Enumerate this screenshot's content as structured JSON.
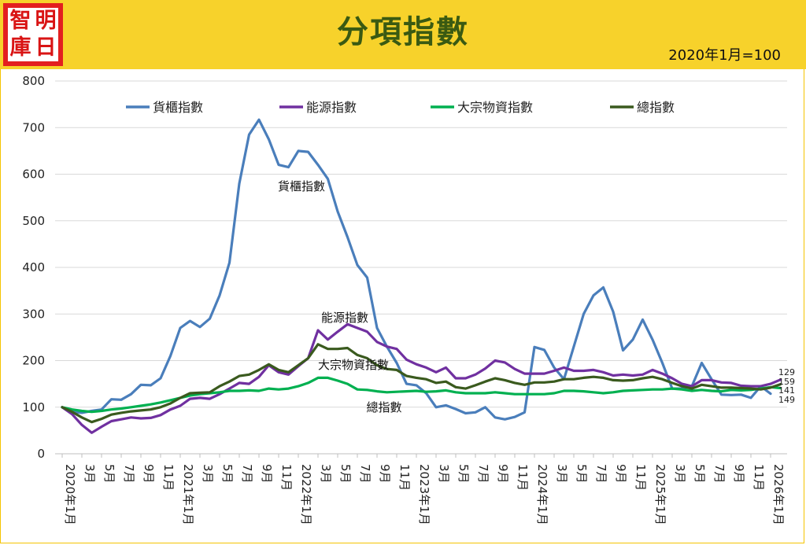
{
  "header": {
    "title": "分項指數",
    "subtitle": "2020年1月=100",
    "logo_chars": [
      "智",
      "明",
      "庫",
      "日"
    ]
  },
  "chart_data": {
    "type": "line",
    "title": "分項指數",
    "subtitle": "2020年1月=100",
    "ylim": [
      0,
      800
    ],
    "yticks": [
      0,
      100,
      200,
      300,
      400,
      500,
      600,
      700,
      800
    ],
    "grid": "horizontal",
    "legend_position": "top",
    "x_start": "2020-01",
    "x_labels": [
      "2020年1月",
      "3月",
      "5月",
      "7月",
      "9月",
      "11月",
      "2021年1月",
      "3月",
      "5月",
      "7月",
      "9月",
      "11月",
      "2022年1月",
      "3月",
      "5月",
      "7月",
      "9月",
      "11月",
      "2023年1月",
      "3月",
      "5月",
      "7月",
      "9月",
      "11月",
      "2024年1月",
      "3月",
      "5月",
      "7月",
      "9月",
      "11月",
      "2025年1月",
      "3月",
      "5月",
      "7月",
      "9月",
      "11月",
      "2026年1月"
    ],
    "series": [
      {
        "name": "貨櫃指數",
        "color": "#4a7ebb",
        "values": [
          100,
          90,
          88,
          92,
          95,
          117,
          116,
          128,
          148,
          147,
          162,
          210,
          270,
          285,
          272,
          290,
          340,
          410,
          580,
          685,
          717,
          675,
          620,
          615,
          650,
          648,
          620,
          590,
          520,
          465,
          405,
          378,
          270,
          230,
          195,
          150,
          147,
          130,
          100,
          104,
          96,
          87,
          89,
          100,
          78,
          74,
          79,
          89,
          229,
          223,
          185,
          160,
          230,
          300,
          340,
          357,
          305,
          222,
          245,
          288,
          245,
          195,
          140,
          140,
          145,
          195,
          160,
          127,
          126,
          127,
          120,
          145,
          129
        ],
        "annotation": "貨櫃指數",
        "end_label": "129"
      },
      {
        "name": "能源指數",
        "color": "#7030a0",
        "values": [
          100,
          85,
          62,
          45,
          58,
          70,
          74,
          78,
          76,
          77,
          83,
          95,
          103,
          118,
          120,
          118,
          128,
          140,
          152,
          150,
          165,
          190,
          175,
          170,
          188,
          205,
          265,
          245,
          262,
          278,
          270,
          262,
          240,
          230,
          225,
          202,
          192,
          185,
          175,
          185,
          162,
          162,
          170,
          183,
          200,
          196,
          182,
          172,
          172,
          172,
          178,
          185,
          178,
          178,
          180,
          175,
          168,
          170,
          168,
          170,
          180,
          172,
          162,
          150,
          145,
          158,
          158,
          153,
          152,
          146,
          145,
          145,
          150,
          159
        ],
        "annotation": "能源指數",
        "end_label": "159"
      },
      {
        "name": "大宗物資指數",
        "color": "#00b050",
        "values": [
          100,
          95,
          92,
          90,
          92,
          95,
          97,
          100,
          103,
          106,
          110,
          115,
          120,
          125,
          128,
          130,
          132,
          135,
          135,
          136,
          135,
          140,
          138,
          140,
          145,
          152,
          163,
          163,
          157,
          150,
          138,
          137,
          134,
          132,
          133,
          134,
          135,
          133,
          134,
          136,
          132,
          130,
          130,
          130,
          132,
          130,
          128,
          128,
          128,
          128,
          130,
          135,
          135,
          134,
          132,
          130,
          132,
          135,
          136,
          137,
          138,
          138,
          140,
          138,
          135,
          137,
          135,
          134,
          137,
          136,
          137,
          140,
          143,
          141
        ],
        "annotation": "大宗物資指數",
        "end_label": "141"
      },
      {
        "name": "總指數",
        "color": "#3a5a1e",
        "values": [
          100,
          90,
          78,
          68,
          75,
          84,
          88,
          91,
          93,
          95,
          100,
          108,
          120,
          130,
          131,
          132,
          145,
          155,
          167,
          170,
          180,
          192,
          180,
          175,
          190,
          205,
          235,
          225,
          225,
          227,
          212,
          205,
          190,
          182,
          180,
          167,
          163,
          160,
          152,
          155,
          143,
          140,
          147,
          155,
          162,
          158,
          152,
          148,
          153,
          153,
          155,
          160,
          160,
          163,
          165,
          163,
          158,
          157,
          158,
          162,
          165,
          160,
          152,
          145,
          140,
          148,
          145,
          142,
          142,
          141,
          140,
          138,
          142,
          149
        ],
        "annotation": "總指數",
        "end_label": "149"
      }
    ]
  }
}
